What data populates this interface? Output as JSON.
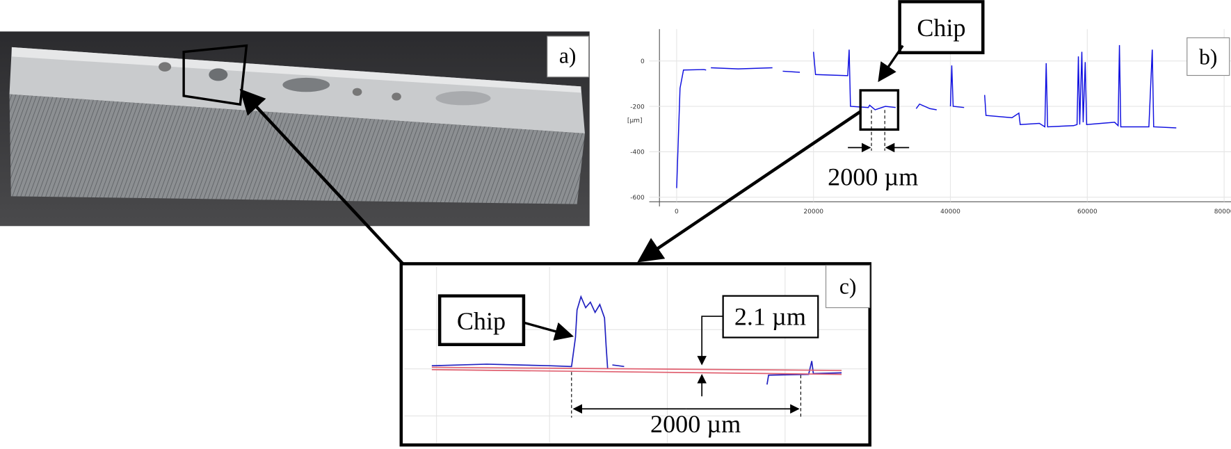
{
  "panels": {
    "a": {
      "label": "a)"
    },
    "b": {
      "label": "b)",
      "callout": "Chip",
      "dimension": "2000 µm",
      "chart": {
        "type": "line",
        "y_axis_label": "[µm]",
        "xlim": [
          -4000,
          81000
        ],
        "ylim": [
          -620,
          140
        ],
        "xticks": [
          0,
          20000,
          40000,
          60000,
          80000
        ],
        "yticks": [
          0,
          -200,
          -400,
          -600
        ],
        "grid": true,
        "series": [
          {
            "color": "#1010e0",
            "x": [
              0,
              500,
              1000,
              4000,
              4300,
              null,
              5000,
              9000,
              14000,
              null,
              15500,
              18000,
              null,
              20000,
              20300,
              25000,
              25200,
              25400,
              28000,
              28200,
              29000,
              29500,
              30500,
              32000,
              null,
              35000,
              35500,
              37000,
              38000,
              null,
              40000,
              40200,
              40400,
              42000,
              null,
              45000,
              45200,
              49000,
              50000,
              50200,
              53000,
              53800,
              54000,
              54200,
              58000,
              58500,
              58700,
              58900,
              59200,
              59400,
              59700,
              59900,
              62000,
              64000,
              64500,
              64700,
              64900,
              69000,
              69500,
              69700,
              73000
            ],
            "y": [
              -560,
              -120,
              -40,
              -38,
              -40,
              null,
              -30,
              -35,
              -30,
              null,
              -45,
              -50,
              null,
              40,
              -60,
              -65,
              50,
              -200,
              -205,
              -195,
              -215,
              -210,
              -200,
              -205,
              null,
              -210,
              -190,
              -210,
              -215,
              null,
              -200,
              -20,
              -200,
              -205,
              null,
              -150,
              -240,
              -250,
              -230,
              -280,
              -275,
              -290,
              -10,
              -290,
              -285,
              -280,
              20,
              -280,
              40,
              -270,
              -5,
              -280,
              -275,
              -270,
              -285,
              70,
              -290,
              -290,
              50,
              -290,
              -295
            ]
          }
        ]
      }
    },
    "c": {
      "label": "c)",
      "callout": "Chip",
      "step": "2.1 µm",
      "dimension": "2000 µm"
    }
  }
}
